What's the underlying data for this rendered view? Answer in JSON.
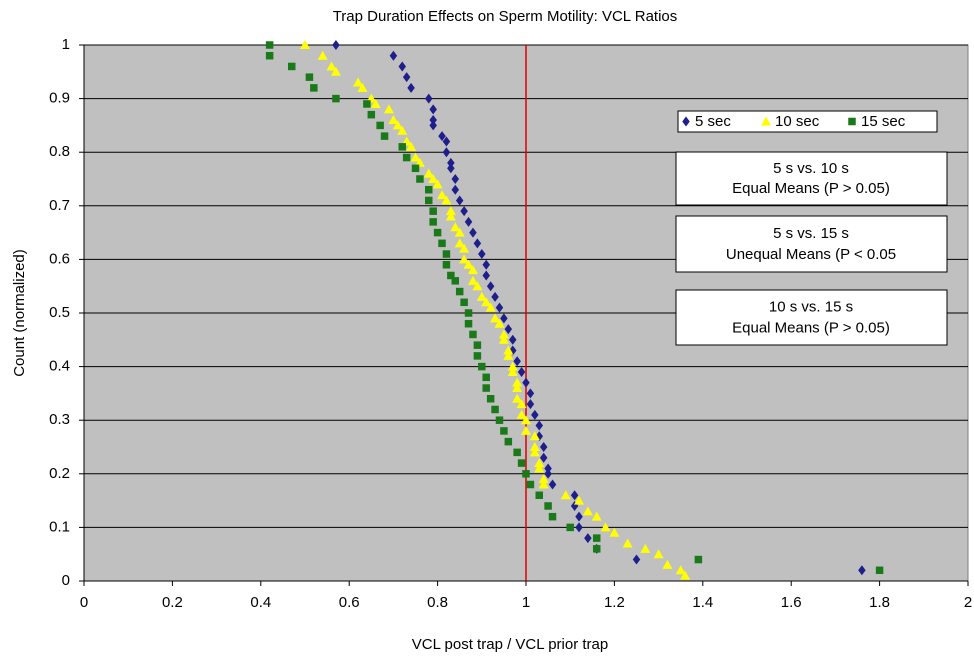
{
  "chart_data": {
    "type": "scatter",
    "title": "Trap Duration Effects on Sperm Motility: VCL Ratios",
    "x_label": "VCL post trap / VCL prior trap",
    "y_label": "Count (normalized)",
    "xlim": [
      0,
      2
    ],
    "ylim": [
      0,
      1
    ],
    "xticks": [
      0,
      0.2,
      0.4,
      0.6,
      0.8,
      1,
      1.2,
      1.4,
      1.6,
      1.8,
      2
    ],
    "yticks": [
      0,
      0.1,
      0.2,
      0.3,
      0.4,
      0.5,
      0.6,
      0.7,
      0.8,
      0.9,
      1
    ],
    "grid": true,
    "legend_position": "upper right",
    "reference_line": {
      "x": 1,
      "color": "#e00000"
    },
    "series": [
      {
        "name": "5 sec",
        "color": "#1f1f8c",
        "marker": "diamond",
        "x": [
          0.57,
          0.7,
          0.72,
          0.73,
          0.74,
          0.78,
          0.79,
          0.79,
          0.79,
          0.81,
          0.82,
          0.82,
          0.83,
          0.83,
          0.84,
          0.84,
          0.85,
          0.86,
          0.87,
          0.88,
          0.89,
          0.9,
          0.91,
          0.91,
          0.92,
          0.93,
          0.94,
          0.95,
          0.96,
          0.97,
          0.97,
          0.98,
          0.99,
          1.0,
          1.01,
          1.01,
          1.02,
          1.03,
          1.03,
          1.04,
          1.04,
          1.05,
          1.05,
          1.06,
          1.11,
          1.11,
          1.12,
          1.12,
          1.14,
          1.16,
          1.25,
          1.76
        ],
        "y": [
          1.0,
          0.98,
          0.96,
          0.94,
          0.92,
          0.9,
          0.88,
          0.86,
          0.85,
          0.83,
          0.82,
          0.8,
          0.78,
          0.77,
          0.75,
          0.73,
          0.71,
          0.69,
          0.67,
          0.65,
          0.63,
          0.61,
          0.59,
          0.57,
          0.55,
          0.53,
          0.51,
          0.49,
          0.47,
          0.45,
          0.43,
          0.41,
          0.39,
          0.37,
          0.35,
          0.33,
          0.31,
          0.29,
          0.27,
          0.25,
          0.23,
          0.21,
          0.2,
          0.18,
          0.16,
          0.14,
          0.12,
          0.1,
          0.08,
          0.06,
          0.04,
          0.02
        ]
      },
      {
        "name": "10 sec",
        "color": "#ffff00",
        "marker": "triangle",
        "x": [
          0.5,
          0.54,
          0.56,
          0.57,
          0.62,
          0.63,
          0.65,
          0.66,
          0.69,
          0.7,
          0.71,
          0.72,
          0.73,
          0.74,
          0.75,
          0.76,
          0.78,
          0.79,
          0.8,
          0.81,
          0.82,
          0.83,
          0.83,
          0.84,
          0.85,
          0.85,
          0.86,
          0.86,
          0.87,
          0.88,
          0.88,
          0.89,
          0.9,
          0.91,
          0.92,
          0.93,
          0.94,
          0.95,
          0.95,
          0.96,
          0.96,
          0.97,
          0.97,
          0.98,
          0.98,
          0.98,
          0.99,
          0.99,
          1.0,
          1.0,
          1.02,
          1.02,
          1.02,
          1.03,
          1.03,
          1.04,
          1.04,
          1.09,
          1.12,
          1.14,
          1.16,
          1.18,
          1.2,
          1.23,
          1.27,
          1.3,
          1.32,
          1.35,
          1.36
        ],
        "y": [
          1.0,
          0.98,
          0.96,
          0.95,
          0.93,
          0.92,
          0.9,
          0.89,
          0.88,
          0.86,
          0.85,
          0.84,
          0.82,
          0.81,
          0.79,
          0.78,
          0.76,
          0.75,
          0.74,
          0.72,
          0.71,
          0.69,
          0.68,
          0.66,
          0.65,
          0.63,
          0.62,
          0.6,
          0.59,
          0.58,
          0.56,
          0.55,
          0.53,
          0.52,
          0.51,
          0.49,
          0.48,
          0.46,
          0.45,
          0.43,
          0.42,
          0.4,
          0.39,
          0.37,
          0.36,
          0.34,
          0.33,
          0.31,
          0.3,
          0.28,
          0.27,
          0.25,
          0.24,
          0.22,
          0.21,
          0.19,
          0.18,
          0.16,
          0.15,
          0.13,
          0.12,
          0.1,
          0.09,
          0.07,
          0.06,
          0.05,
          0.03,
          0.02,
          0.01
        ]
      },
      {
        "name": "15 sec",
        "color": "#1a7a1a",
        "marker": "square",
        "x": [
          0.42,
          0.42,
          0.47,
          0.51,
          0.52,
          0.57,
          0.64,
          0.65,
          0.67,
          0.68,
          0.72,
          0.73,
          0.75,
          0.76,
          0.78,
          0.78,
          0.79,
          0.79,
          0.8,
          0.81,
          0.82,
          0.82,
          0.83,
          0.84,
          0.85,
          0.86,
          0.87,
          0.87,
          0.88,
          0.89,
          0.89,
          0.9,
          0.91,
          0.91,
          0.92,
          0.93,
          0.94,
          0.95,
          0.96,
          0.98,
          0.99,
          1.0,
          1.01,
          1.03,
          1.05,
          1.06,
          1.1,
          1.16,
          1.16,
          1.39,
          1.8
        ],
        "y": [
          1.0,
          0.98,
          0.96,
          0.94,
          0.92,
          0.9,
          0.89,
          0.87,
          0.85,
          0.83,
          0.81,
          0.79,
          0.77,
          0.75,
          0.73,
          0.71,
          0.69,
          0.67,
          0.65,
          0.63,
          0.61,
          0.59,
          0.57,
          0.56,
          0.54,
          0.52,
          0.5,
          0.48,
          0.46,
          0.44,
          0.42,
          0.4,
          0.38,
          0.36,
          0.34,
          0.32,
          0.3,
          0.28,
          0.26,
          0.24,
          0.22,
          0.2,
          0.18,
          0.16,
          0.14,
          0.12,
          0.1,
          0.08,
          0.06,
          0.04,
          0.02
        ]
      }
    ],
    "annotations": [
      {
        "lines": [
          "5 s vs. 10 s",
          "Equal Means (P > 0.05)"
        ]
      },
      {
        "lines": [
          "5 s vs. 15 s",
          "Unequal Means (P < 0.05"
        ]
      },
      {
        "lines": [
          "10 s vs. 15 s",
          "Equal Means (P > 0.05)"
        ]
      }
    ]
  }
}
